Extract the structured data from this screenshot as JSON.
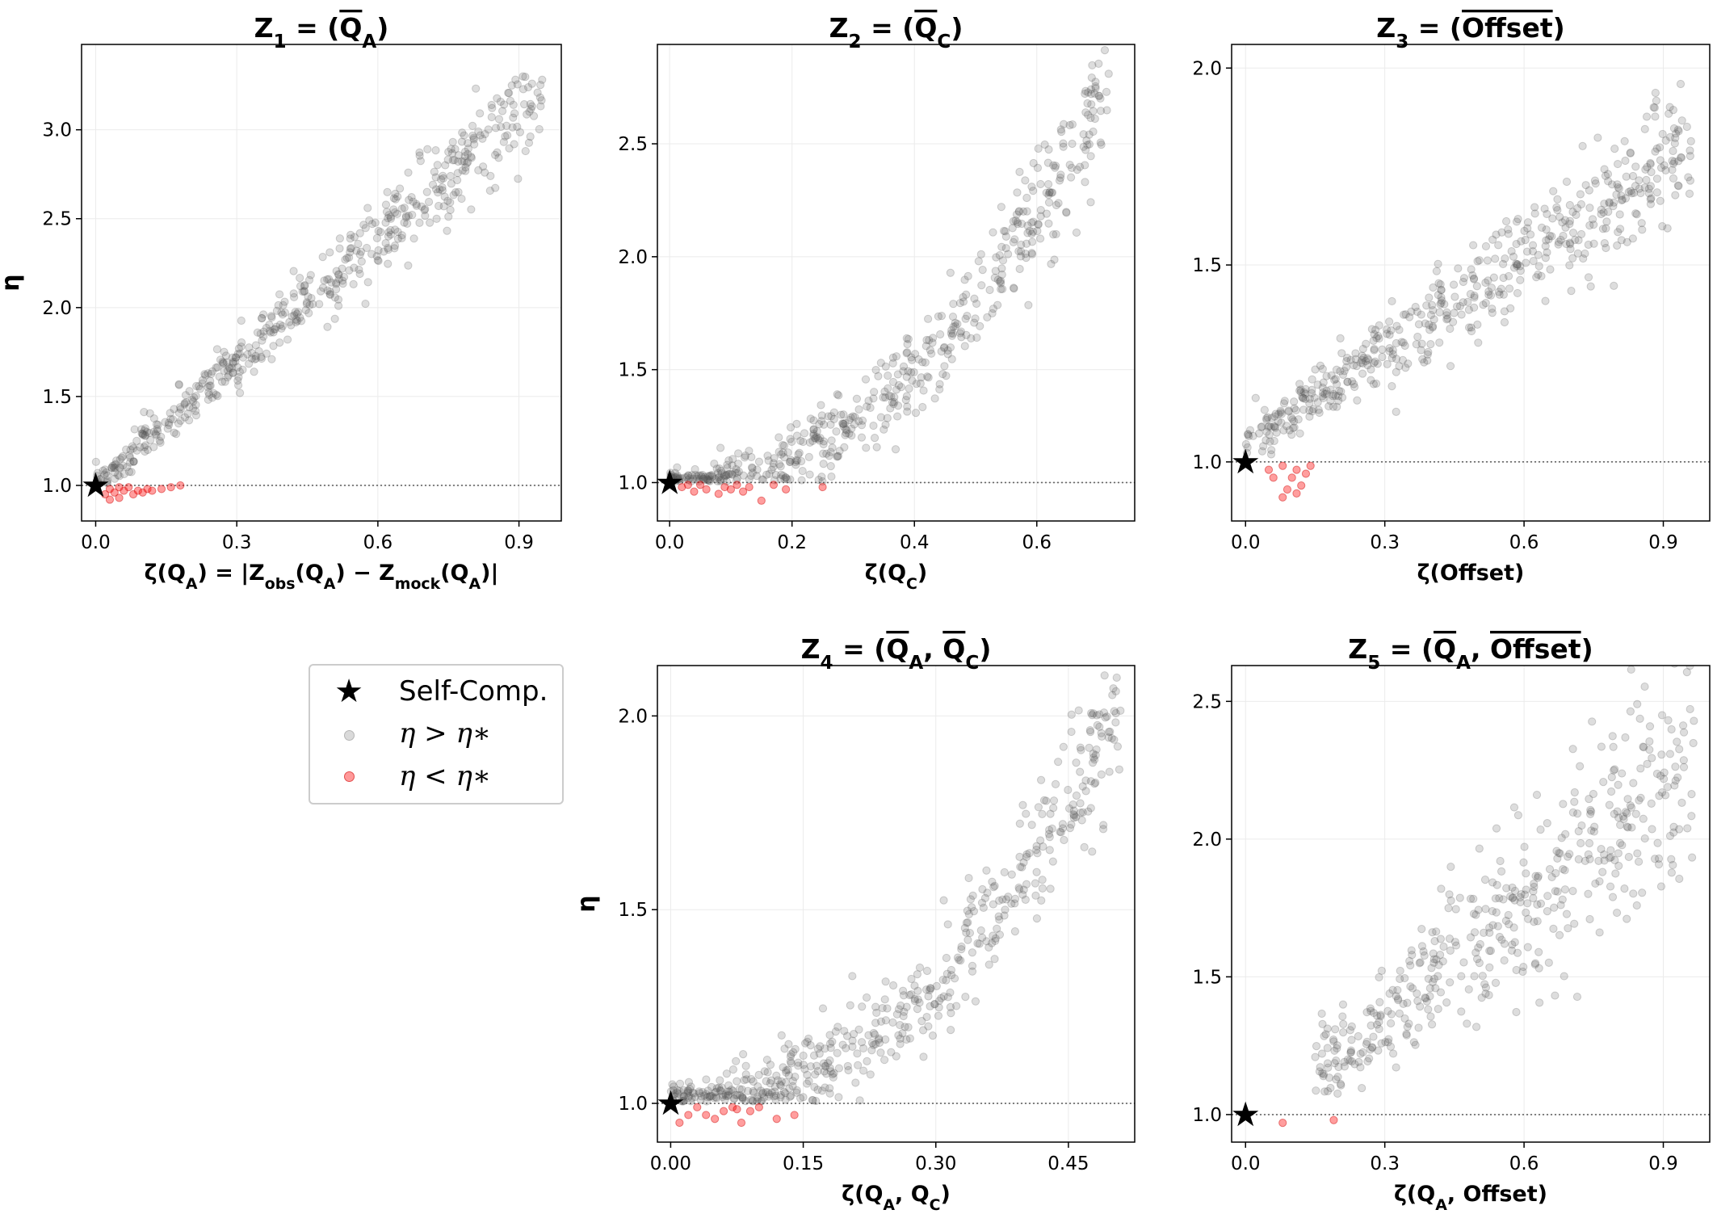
{
  "chart_data": [
    {
      "type": "scatter",
      "title": "Z1 = (Q̄A)",
      "title_parts": {
        "lhs": "Z",
        "lhs_sub": "1",
        "args": [
          "QA"
        ]
      },
      "xlabel": "ζ(QA) = |Zobs(QA) − Zmock(QA)|",
      "ylabel": "η",
      "xlim": [
        -0.03,
        0.99
      ],
      "ylim": [
        0.8,
        3.48
      ],
      "xticks": [
        0.0,
        0.3,
        0.6,
        0.9
      ],
      "xtick_labels": [
        "0.0",
        "0.3",
        "0.6",
        "0.9"
      ],
      "yticks": [
        1.0,
        1.5,
        2.0,
        2.5,
        3.0
      ],
      "ytick_labels": [
        "1.0",
        "1.5",
        "2.0",
        "2.5",
        "3.0"
      ],
      "threshold_eta": 1.0,
      "self_comp": {
        "x": 0.0,
        "y": 1.0
      },
      "grey_trend": {
        "n": 520,
        "x_range": [
          0.0,
          0.95
        ],
        "shape": "linear",
        "y_at_start": 1.0,
        "y_at_end": 3.2,
        "spread": 0.12
      },
      "red_points": [
        [
          0.02,
          0.95
        ],
        [
          0.03,
          0.98
        ],
        [
          0.04,
          0.96
        ],
        [
          0.05,
          0.93
        ],
        [
          0.06,
          0.97
        ],
        [
          0.07,
          0.99
        ],
        [
          0.08,
          0.95
        ],
        [
          0.09,
          0.97
        ],
        [
          0.1,
          0.96
        ],
        [
          0.11,
          0.98
        ],
        [
          0.12,
          0.97
        ],
        [
          0.14,
          0.98
        ],
        [
          0.16,
          0.99
        ],
        [
          0.18,
          1.0
        ],
        [
          0.05,
          0.99
        ],
        [
          0.03,
          0.92
        ]
      ]
    },
    {
      "type": "scatter",
      "title": "Z2 = (Q̄C)",
      "title_parts": {
        "lhs": "Z",
        "lhs_sub": "2",
        "args": [
          "QC"
        ]
      },
      "xlabel": "ζ(QC)",
      "ylabel": "",
      "xlim": [
        -0.02,
        0.76
      ],
      "ylim": [
        0.83,
        2.94
      ],
      "xticks": [
        0.0,
        0.2,
        0.4,
        0.6
      ],
      "xtick_labels": [
        "0.0",
        "0.2",
        "0.4",
        "0.6"
      ],
      "yticks": [
        1.0,
        1.5,
        2.0,
        2.5
      ],
      "ytick_labels": [
        "1.0",
        "1.5",
        "2.0",
        "2.5"
      ],
      "threshold_eta": 1.0,
      "self_comp": {
        "x": 0.0,
        "y": 1.0
      },
      "grey_trend": {
        "n": 520,
        "x_range": [
          0.0,
          0.72
        ],
        "shape": "convex",
        "y_at_start": 1.0,
        "y_at_end": 2.8,
        "spread": 0.12
      },
      "red_points": [
        [
          0.02,
          0.98
        ],
        [
          0.04,
          0.96
        ],
        [
          0.05,
          0.99
        ],
        [
          0.06,
          0.97
        ],
        [
          0.08,
          0.95
        ],
        [
          0.09,
          0.98
        ],
        [
          0.1,
          0.97
        ],
        [
          0.11,
          0.99
        ],
        [
          0.12,
          0.96
        ],
        [
          0.13,
          0.98
        ],
        [
          0.15,
          0.92
        ],
        [
          0.17,
          0.99
        ],
        [
          0.19,
          0.97
        ],
        [
          0.25,
          0.98
        ],
        [
          0.03,
          0.99
        ]
      ]
    },
    {
      "type": "scatter",
      "title": "Z3 = (Offset‾)",
      "title_parts": {
        "lhs": "Z",
        "lhs_sub": "3",
        "args": [
          "Offset"
        ]
      },
      "xlabel": "ζ(Offset)",
      "ylabel": "",
      "xlim": [
        -0.03,
        1.0
      ],
      "ylim": [
        0.85,
        2.06
      ],
      "xticks": [
        0.0,
        0.3,
        0.6,
        0.9
      ],
      "xtick_labels": [
        "0.0",
        "0.3",
        "0.6",
        "0.9"
      ],
      "yticks": [
        1.0,
        1.5,
        2.0
      ],
      "ytick_labels": [
        "1.0",
        "1.5",
        "2.0"
      ],
      "threshold_eta": 1.0,
      "self_comp": {
        "x": 0.0,
        "y": 1.0
      },
      "grey_trend": {
        "n": 520,
        "x_range": [
          0.0,
          0.96
        ],
        "shape": "linear",
        "y_at_start": 1.05,
        "y_at_end": 1.8,
        "spread": 0.07
      },
      "red_points": [
        [
          0.05,
          0.98
        ],
        [
          0.06,
          0.96
        ],
        [
          0.08,
          0.99
        ],
        [
          0.09,
          0.93
        ],
        [
          0.1,
          0.96
        ],
        [
          0.11,
          0.98
        ],
        [
          0.12,
          0.94
        ],
        [
          0.13,
          0.97
        ],
        [
          0.08,
          0.91
        ],
        [
          0.11,
          0.92
        ],
        [
          0.14,
          0.99
        ]
      ]
    },
    {
      "type": "scatter",
      "title": "Z4 = (Q̄A, Q̄C)",
      "title_parts": {
        "lhs": "Z",
        "lhs_sub": "4",
        "args": [
          "QA",
          "QC"
        ]
      },
      "xlabel": "ζ(QA, QC)",
      "ylabel": "η",
      "xlim": [
        -0.015,
        0.525
      ],
      "ylim": [
        0.9,
        2.13
      ],
      "xticks": [
        0.0,
        0.15,
        0.3,
        0.45
      ],
      "xtick_labels": [
        "0.00",
        "0.15",
        "0.30",
        "0.45"
      ],
      "yticks": [
        1.0,
        1.5,
        2.0
      ],
      "ytick_labels": [
        "1.0",
        "1.5",
        "2.0"
      ],
      "threshold_eta": 1.0,
      "self_comp": {
        "x": 0.0,
        "y": 1.0
      },
      "grey_trend": {
        "n": 520,
        "x_range": [
          0.0,
          0.51
        ],
        "shape": "convex",
        "y_at_start": 1.0,
        "y_at_end": 2.0,
        "spread": 0.08
      },
      "red_points": [
        [
          0.01,
          0.95
        ],
        [
          0.02,
          0.97
        ],
        [
          0.03,
          0.99
        ],
        [
          0.05,
          0.96
        ],
        [
          0.06,
          0.98
        ],
        [
          0.07,
          0.99
        ],
        [
          0.08,
          0.95
        ],
        [
          0.09,
          0.98
        ],
        [
          0.1,
          0.99
        ],
        [
          0.12,
          0.96
        ],
        [
          0.14,
          0.97
        ],
        [
          0.04,
          0.97
        ],
        [
          0.075,
          0.985
        ]
      ]
    },
    {
      "type": "scatter",
      "title": "Z5 = (Q̄A, Offset‾)",
      "title_parts": {
        "lhs": "Z",
        "lhs_sub": "5",
        "args": [
          "QA",
          "Offset"
        ]
      },
      "xlabel": "ζ(QA, Offset)",
      "ylabel": "",
      "xlim": [
        -0.03,
        1.0
      ],
      "ylim": [
        0.9,
        2.63
      ],
      "xticks": [
        0.0,
        0.3,
        0.6,
        0.9
      ],
      "xtick_labels": [
        "0.0",
        "0.3",
        "0.6",
        "0.9"
      ],
      "yticks": [
        1.0,
        1.5,
        2.0,
        2.5
      ],
      "ytick_labels": [
        "1.0",
        "1.5",
        "2.0",
        "2.5"
      ],
      "threshold_eta": 1.0,
      "self_comp": {
        "x": 0.0,
        "y": 1.0
      },
      "grey_trend": {
        "n": 450,
        "x_range": [
          0.15,
          0.97
        ],
        "shape": "linear",
        "y_at_start": 1.15,
        "y_at_end": 2.3,
        "spread": 0.2
      },
      "red_points": [
        [
          0.08,
          0.97
        ],
        [
          0.19,
          0.98
        ]
      ]
    }
  ],
  "legend": {
    "items": [
      {
        "label": "Self-Comp.",
        "marker": "star"
      },
      {
        "label": "η > η∗",
        "marker": "grey-dot"
      },
      {
        "label": "η < η∗",
        "marker": "red-dot"
      }
    ]
  },
  "colors": {
    "grey": "#555555",
    "red": "#ff0000",
    "star": "#000000",
    "threshold": "#666666"
  }
}
